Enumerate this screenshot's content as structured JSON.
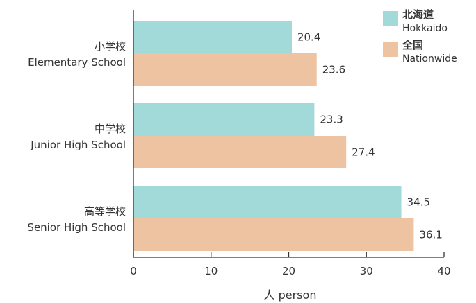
{
  "chart_data": {
    "type": "bar",
    "orientation": "horizontal",
    "categories": [
      {
        "ja": "小学校",
        "en": "Elementary School"
      },
      {
        "ja": "中学校",
        "en": "Junior High School"
      },
      {
        "ja": "高等学校",
        "en": "Senior High School"
      }
    ],
    "series": [
      {
        "name_ja": "北海道",
        "name_en": "Hokkaido",
        "color": "#a1dad8",
        "values": [
          20.4,
          23.3,
          34.5
        ],
        "labels": [
          "20.4",
          "23.3",
          "34.5"
        ]
      },
      {
        "name_ja": "全国",
        "name_en": "Nationwide",
        "color": "#eec3a2",
        "values": [
          23.6,
          27.4,
          36.1
        ],
        "labels": [
          "23.6",
          "27.4",
          "36.1"
        ]
      }
    ],
    "xlabel": "人 person",
    "xlim": [
      0,
      40
    ],
    "xticks": [
      "0",
      "10",
      "20",
      "30",
      "40"
    ],
    "grid": false,
    "legend_position": "top-right"
  }
}
